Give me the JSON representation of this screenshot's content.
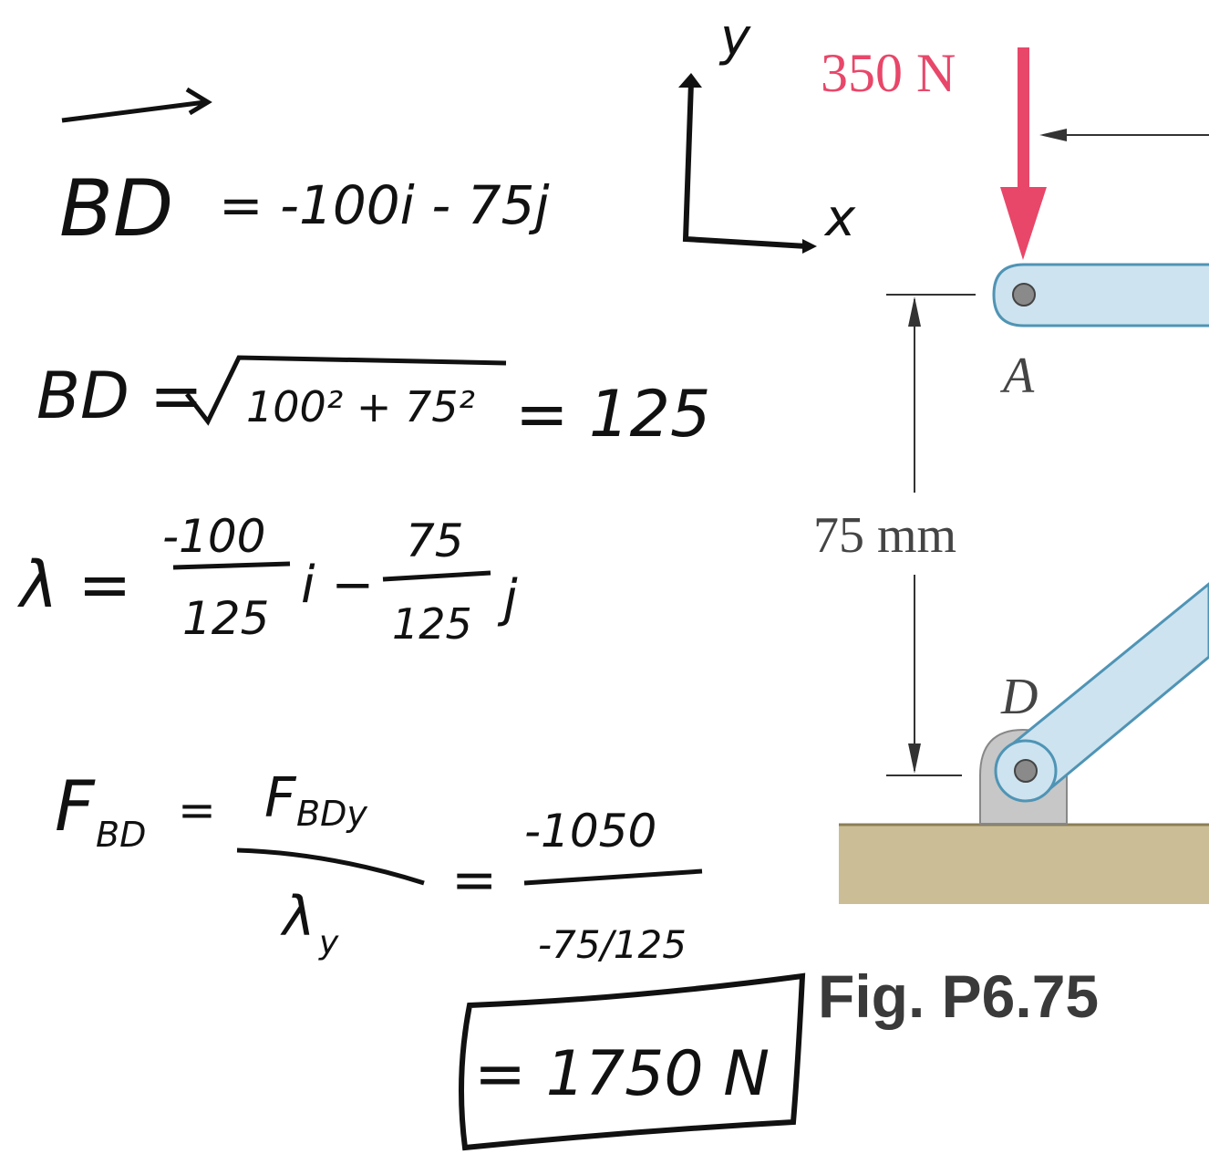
{
  "notes": {
    "vector_bd": {
      "lhs": "BD",
      "rhs": "= -100i - 75j"
    },
    "axes": {
      "y": "y",
      "x": "x"
    },
    "magnitude": {
      "lhs": "BD =",
      "radicand": "100² + 75²",
      "result": "= 125"
    },
    "unit_vector": {
      "lhs": "λ =",
      "i_num": "-100",
      "i_den": "125",
      "i": "i −",
      "j_num": "75",
      "j_den": "125",
      "j": "j"
    },
    "force": {
      "lhs": "F",
      "lhs_sub": "BD",
      "eq": "=",
      "num": "F",
      "num_sub": "BDy",
      "den": "λ",
      "den_sub": "y",
      "eq2": "=",
      "num2": "-1050",
      "den2": "-75/125"
    },
    "answer": "= 1750 N"
  },
  "figure": {
    "load": "350 N",
    "point_a": "A",
    "dimension": "75 mm",
    "point_d": "D",
    "caption": "Fig. P6.75"
  }
}
